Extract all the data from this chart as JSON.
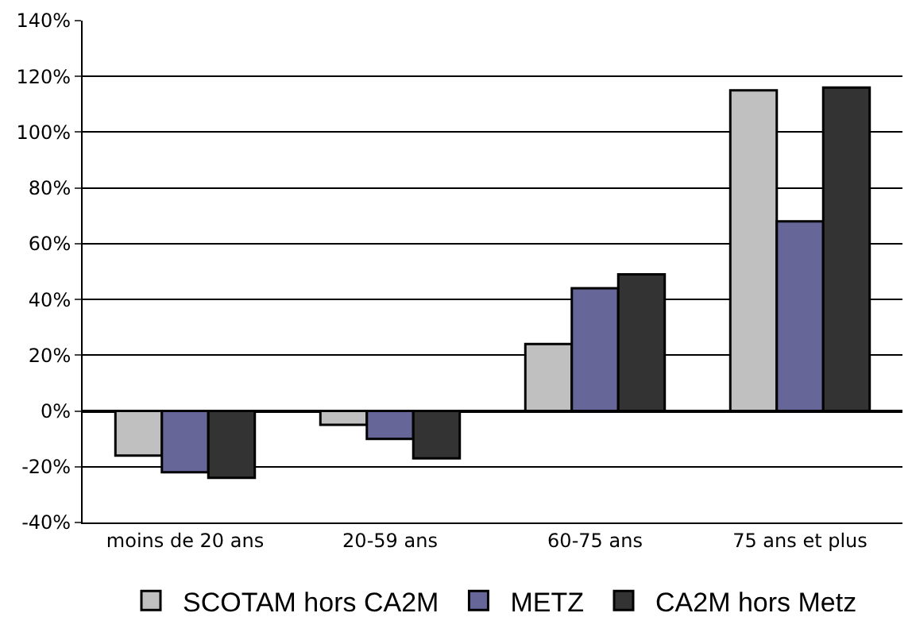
{
  "chart_data": {
    "type": "bar",
    "categories": [
      "moins de 20 ans",
      "20-59 ans",
      "60-75 ans",
      "75 ans et plus"
    ],
    "series": [
      {
        "name": "SCOTAM hors CA2M",
        "color": "#c0c0c0",
        "values": [
          -0.16,
          -0.05,
          0.24,
          1.15
        ]
      },
      {
        "name": "METZ",
        "color": "#666699",
        "values": [
          -0.22,
          -0.1,
          0.44,
          0.68
        ]
      },
      {
        "name": "CA2M hors Metz",
        "color": "#333333",
        "values": [
          -0.24,
          -0.17,
          0.49,
          1.16
        ]
      }
    ],
    "ylim": [
      -0.4,
      1.4
    ],
    "yticks": [
      {
        "value": -0.4,
        "label": "-40%"
      },
      {
        "value": -0.2,
        "label": "-20%"
      },
      {
        "value": 0,
        "label": "0%"
      },
      {
        "value": 0.2,
        "label": "20%"
      },
      {
        "value": 0.4,
        "label": "40%"
      },
      {
        "value": 0.6,
        "label": "60%"
      },
      {
        "value": 0.8,
        "label": "80%"
      },
      {
        "value": 1.0,
        "label": "100%"
      },
      {
        "value": 1.2,
        "label": "120%"
      },
      {
        "value": 1.4,
        "label": "140%"
      }
    ],
    "grid": "y",
    "legend": "bottom"
  }
}
